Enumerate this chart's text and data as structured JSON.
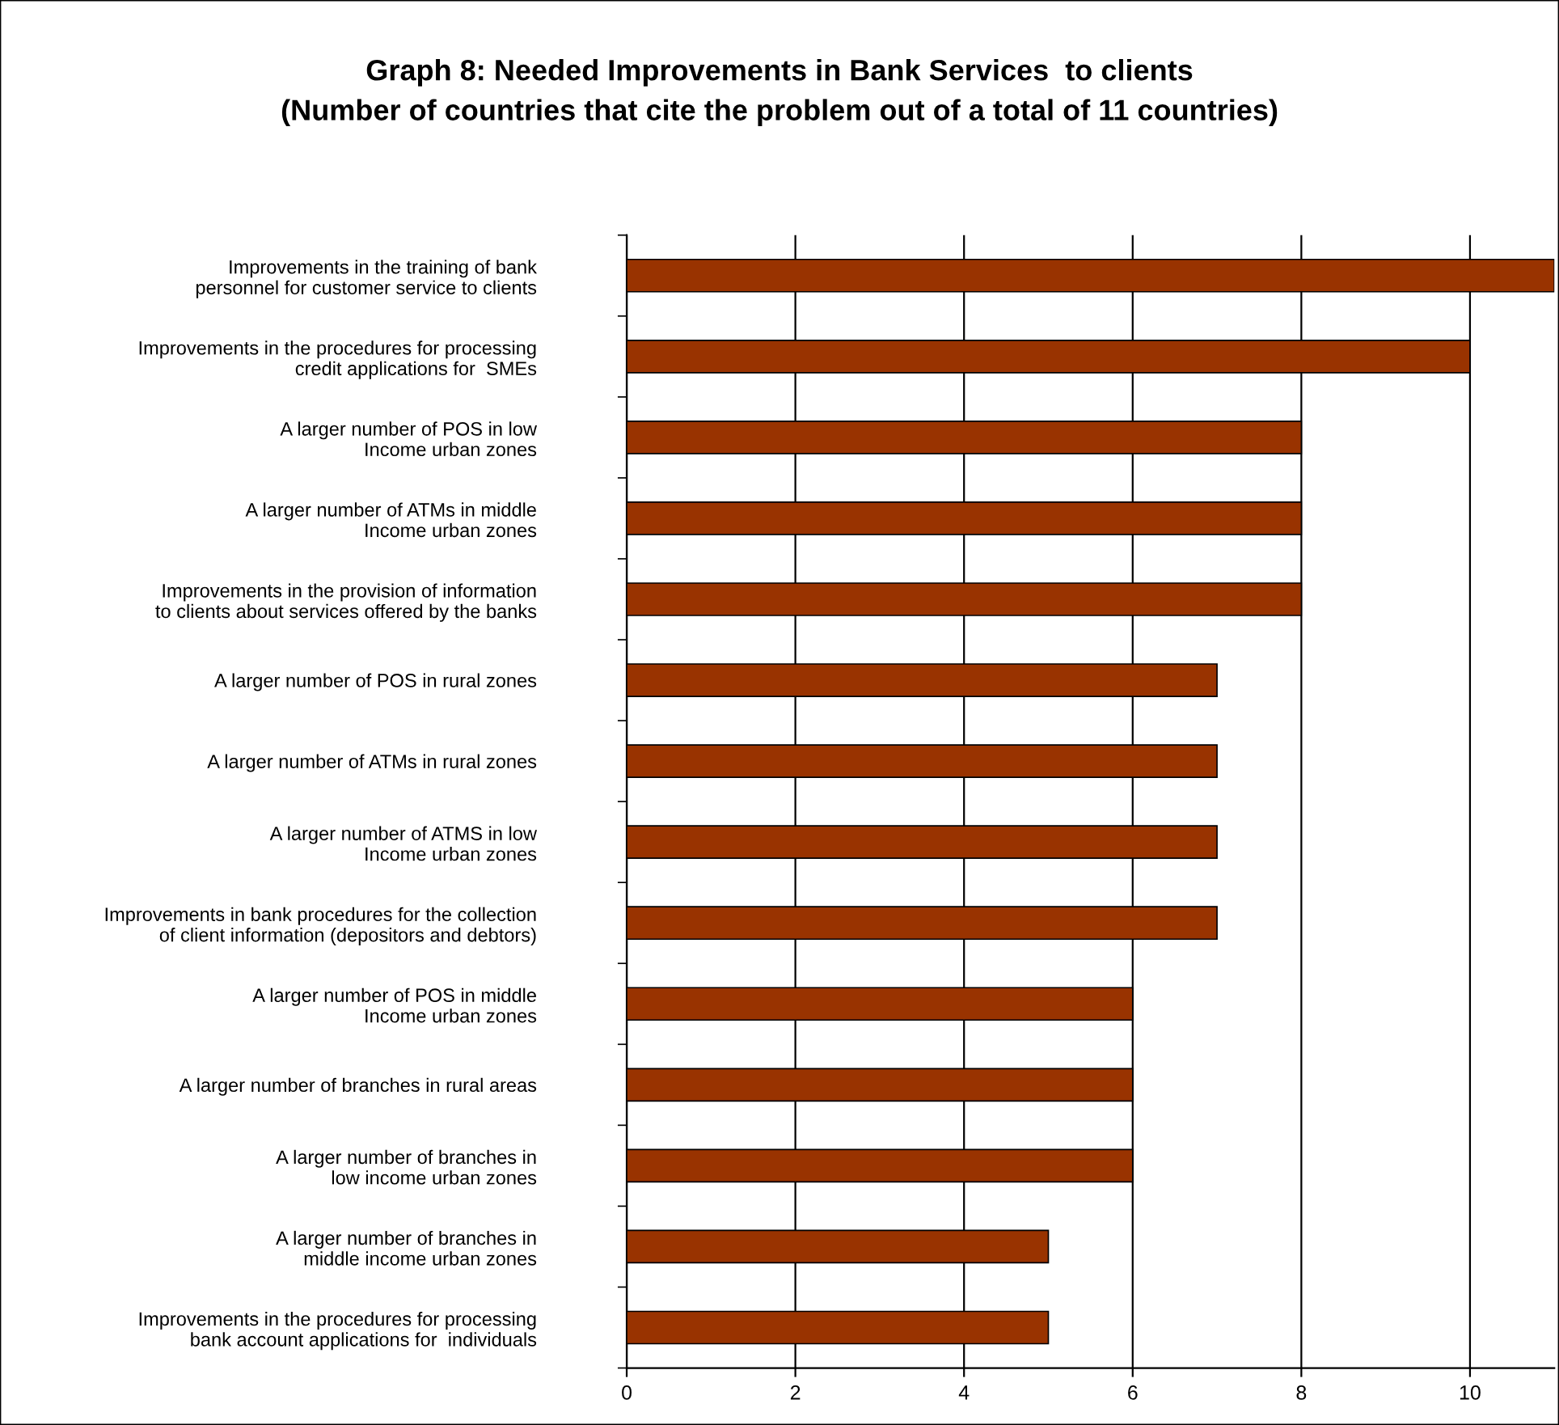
{
  "chart_data": {
    "type": "bar",
    "orientation": "horizontal",
    "title": "Graph 8: Needed Improvements in Bank Services  to clients\n(Number of countries that cite the problem out of a total of 11 countries)",
    "categories": [
      "Improvements in the training of bank\npersonnel for customer service to clients",
      "Improvements in the procedures for processing\ncredit applications for  SMEs",
      "A larger number of POS in low\nIncome urban zones",
      "A larger number of ATMs in middle\nIncome urban zones",
      "Improvements in the provision of information\nto clients about services offered by the banks",
      "A larger number of POS in rural zones",
      "A larger number of ATMs in rural zones",
      "A larger number of ATMS in low\nIncome urban zones",
      "Improvements in bank procedures for the collection\nof client information (depositors and debtors)",
      "A larger number of POS in middle\nIncome urban zones",
      "A larger number of branches in rural areas",
      "A larger number of branches in\nlow income urban zones",
      "A larger number of branches in\nmiddle income urban zones",
      "Improvements in the procedures for processing\nbank account applications for  individuals"
    ],
    "values": [
      11,
      10,
      8,
      8,
      8,
      7,
      7,
      7,
      7,
      6,
      6,
      6,
      5,
      5
    ],
    "color": "#993300",
    "xlim": [
      0,
      11
    ],
    "xticks": [
      0,
      2,
      4,
      6,
      8,
      10
    ],
    "grid": "x",
    "legend": false
  }
}
